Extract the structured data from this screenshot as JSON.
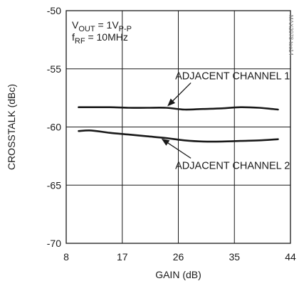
{
  "chart_data": {
    "type": "line",
    "title": "",
    "xlabel": "GAIN (dB)",
    "ylabel": "CROSSTALK (dBc)",
    "xlim": [
      8,
      44
    ],
    "ylim": [
      -70,
      -50
    ],
    "x_ticks": [
      8,
      17,
      26,
      35,
      44
    ],
    "y_ticks": [
      -50,
      -55,
      -60,
      -65,
      -70
    ],
    "grid": true,
    "conditions": {
      "vout": {
        "main": "V",
        "sub1": "OUT",
        "mid": " = 1V",
        "sub2": "P-P"
      },
      "frf": {
        "main": "f",
        "sub1": "RF",
        "mid": " = 10MHz"
      }
    },
    "watermark": "MAX2078 toc14",
    "series": [
      {
        "name": "ADJACENT CHANNEL 1",
        "x": [
          10,
          12,
          15,
          18,
          21,
          24,
          27,
          30,
          33,
          36,
          39,
          42
        ],
        "y": [
          -58.3,
          -58.3,
          -58.3,
          -58.35,
          -58.35,
          -58.35,
          -58.5,
          -58.45,
          -58.4,
          -58.3,
          -58.35,
          -58.5
        ]
      },
      {
        "name": "ADJACENT CHANNEL 2",
        "x": [
          10,
          12,
          15,
          18,
          21,
          24,
          27,
          30,
          33,
          36,
          39,
          42
        ],
        "y": [
          -60.35,
          -60.3,
          -60.5,
          -60.65,
          -60.8,
          -60.95,
          -61.15,
          -61.25,
          -61.25,
          -61.2,
          -61.15,
          -61.05
        ]
      }
    ],
    "annotations": [
      {
        "text": "ADJACENT CHANNEL 1",
        "series": 0,
        "target_x": 24,
        "label_x": 25.5,
        "label_y": -55.9
      },
      {
        "text": "ADJACENT CHANNEL 2",
        "series": 1,
        "target_x": 23,
        "label_x": 25.5,
        "label_y": -63.6
      }
    ]
  }
}
